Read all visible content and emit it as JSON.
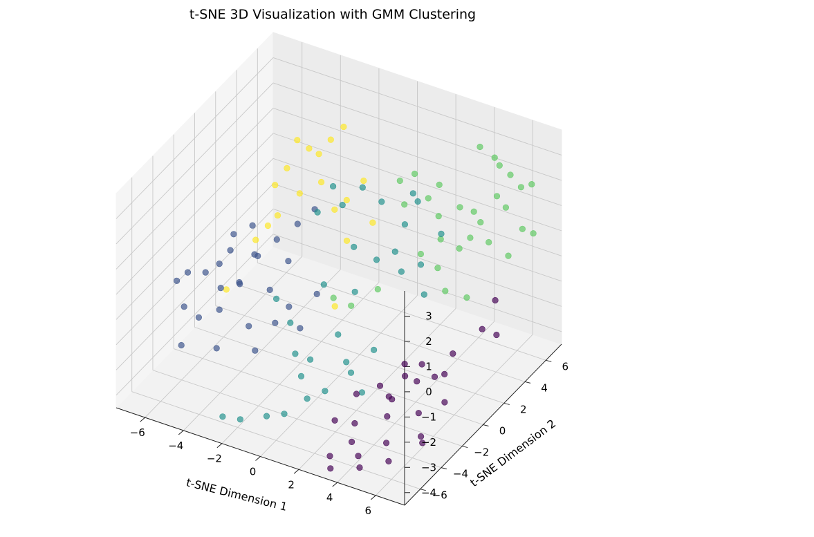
{
  "chart_data": {
    "type": "scatter",
    "projection": "3d",
    "title": "t-SNE 3D Visualization with GMM Clustering",
    "xlabel": "t-SNE Dimension 1",
    "ylabel": "t-SNE Dimension 2",
    "zlabel": "",
    "xlim": [
      -7.5,
      7.5
    ],
    "ylim": [
      -7.5,
      7.5
    ],
    "zlim": [
      -4.5,
      4
    ],
    "xticks": [
      -6,
      -4,
      -2,
      0,
      2,
      4,
      6
    ],
    "yticks": [
      -6,
      -4,
      -2,
      0,
      2,
      4,
      6
    ],
    "zticks": [
      -4,
      -3,
      -2,
      -1,
      0,
      1,
      2,
      3
    ],
    "xtick_labels": [
      "−6",
      "−4",
      "−2",
      "0",
      "2",
      "4",
      "6"
    ],
    "ytick_labels": [
      "−6",
      "−4",
      "−2",
      "0",
      "2",
      "4",
      "6"
    ],
    "ztick_labels": [
      "−4",
      "−3",
      "−2",
      "−1",
      "0",
      "1",
      "2",
      "3"
    ],
    "grid": true,
    "legend": "none",
    "colormap": "viridis",
    "cluster_colors": [
      "#440154",
      "#3b528b",
      "#21918c",
      "#5ec962",
      "#fde725"
    ],
    "series": [
      {
        "cluster": 0,
        "points": [
          [
            4.8,
            -2.5,
            -2.2
          ],
          [
            5.3,
            -1.8,
            -1.9
          ],
          [
            6.2,
            -0.5,
            -1.8
          ],
          [
            4.5,
            -3.2,
            -2.9
          ],
          [
            5.8,
            -1.5,
            -2.4
          ],
          [
            3.2,
            -4.2,
            -2.6
          ],
          [
            4.1,
            -3.6,
            -2.3
          ],
          [
            5.0,
            -2.9,
            -1.5
          ],
          [
            6.8,
            1.2,
            -1.4
          ],
          [
            7.0,
            2.2,
            -2.0
          ],
          [
            6.5,
            3.0,
            -1.1
          ],
          [
            4.6,
            -1.0,
            -3.1
          ],
          [
            3.8,
            -2.2,
            -3.4
          ],
          [
            5.6,
            -0.2,
            -2.9
          ],
          [
            2.4,
            -4.8,
            -3.6
          ],
          [
            3.0,
            -4.0,
            -3.9
          ],
          [
            4.2,
            -3.1,
            -3.7
          ],
          [
            5.4,
            -2.3,
            -3.6
          ],
          [
            6.1,
            -1.1,
            -3.5
          ],
          [
            3.5,
            -5.2,
            -4.0
          ],
          [
            4.7,
            -4.1,
            -4.2
          ],
          [
            5.9,
            -3.0,
            -4.1
          ],
          [
            2.8,
            -6.0,
            -4.4
          ],
          [
            4.0,
            -5.5,
            -4.3
          ],
          [
            5.2,
            -4.8,
            -4.5
          ],
          [
            6.3,
            -3.6,
            -4.0
          ],
          [
            3.1,
            -6.5,
            -4.6
          ],
          [
            4.4,
            -6.1,
            -4.4
          ]
        ]
      },
      {
        "cluster": 1,
        "points": [
          [
            -6.8,
            -3.0,
            -1.2
          ],
          [
            -6.5,
            -2.5,
            -1.0
          ],
          [
            -5.9,
            -1.9,
            -1.1
          ],
          [
            -5.4,
            -1.5,
            -0.8
          ],
          [
            -5.0,
            -2.1,
            -1.4
          ],
          [
            -6.2,
            -3.4,
            -1.9
          ],
          [
            -5.6,
            -3.1,
            -2.3
          ],
          [
            -4.8,
            -2.6,
            -2.0
          ],
          [
            -4.5,
            -1.2,
            -1.5
          ],
          [
            -5.2,
            -0.5,
            0.0
          ],
          [
            -4.6,
            0.2,
            0.2
          ],
          [
            -4.0,
            -0.4,
            -0.6
          ],
          [
            -3.5,
            0.5,
            -0.2
          ],
          [
            -4.2,
            -1.8,
            -1.1
          ],
          [
            -3.1,
            -0.9,
            -1.5
          ],
          [
            -2.8,
            1.2,
            0.3
          ],
          [
            -2.4,
            2.1,
            0.6
          ],
          [
            -3.6,
            -2.0,
            -2.6
          ],
          [
            -2.5,
            -1.5,
            -2.4
          ],
          [
            -1.8,
            -0.4,
            -2.9
          ],
          [
            -5.8,
            -4.4,
            -2.9
          ],
          [
            -4.4,
            -3.6,
            -3.0
          ],
          [
            -3.0,
            -2.5,
            -3.2
          ],
          [
            -2.0,
            -1.1,
            -1.8
          ],
          [
            -1.2,
            0.1,
            -1.6
          ],
          [
            -2.9,
            0.5,
            -0.9
          ],
          [
            -3.9,
            -0.9,
            -0.3
          ],
          [
            -5.1,
            -1.0,
            -0.4
          ]
        ]
      },
      {
        "cluster": 2,
        "points": [
          [
            -2.2,
            -0.6,
            -2.7
          ],
          [
            -1.4,
            -1.6,
            -3.3
          ],
          [
            -0.4,
            -2.0,
            -3.1
          ],
          [
            0.5,
            -1.0,
            -2.3
          ],
          [
            1.5,
            -1.6,
            -3.3
          ],
          [
            2.4,
            -2.2,
            -3.6
          ],
          [
            -3.0,
            -5.6,
            -4.5
          ],
          [
            -2.3,
            -5.2,
            -4.6
          ],
          [
            -1.2,
            -4.7,
            -4.4
          ],
          [
            -0.5,
            -4.3,
            -4.3
          ],
          [
            -0.6,
            -2.5,
            -3.6
          ],
          [
            0.2,
            -3.4,
            -3.9
          ],
          [
            0.8,
            -2.8,
            -3.7
          ],
          [
            1.2,
            -1.5,
            -3.0
          ],
          [
            -1.0,
            0.4,
            -1.3
          ],
          [
            0.6,
            2.5,
            -0.8
          ],
          [
            1.4,
            2.8,
            -0.4
          ],
          [
            -0.2,
            1.8,
            -0.2
          ],
          [
            1.8,
            3.0,
            0.7
          ],
          [
            2.2,
            3.5,
            1.5
          ],
          [
            2.9,
            2.5,
            -0.4
          ],
          [
            0.7,
            2.8,
            1.4
          ],
          [
            -0.4,
            3.0,
            1.6
          ],
          [
            -1.5,
            2.2,
            1.7
          ],
          [
            1.9,
            3.6,
            1.7
          ],
          [
            3.2,
            3.9,
            0.3
          ],
          [
            2.6,
            1.2,
            -0.2
          ],
          [
            -2.6,
            -1.2,
            -1.6
          ],
          [
            -1.6,
            0.9,
            1.2
          ],
          [
            -0.9,
            2.0,
            1.2
          ],
          [
            3.4,
            1.9,
            -1.2
          ],
          [
            0.4,
            0.8,
            -1.4
          ],
          [
            2.2,
            -0.7,
            -2.6
          ]
        ]
      },
      {
        "cluster": 3,
        "points": [
          [
            3.8,
            6.5,
            2.8
          ],
          [
            4.4,
            6.8,
            2.4
          ],
          [
            4.6,
            6.9,
            2.1
          ],
          [
            5.0,
            7.2,
            1.7
          ],
          [
            5.5,
            7.3,
            1.3
          ],
          [
            6.0,
            7.4,
            1.5
          ],
          [
            5.2,
            6.4,
            0.8
          ],
          [
            5.9,
            6.7,
            0.0
          ],
          [
            3.3,
            5.5,
            0.7
          ],
          [
            4.1,
            6.0,
            0.1
          ],
          [
            4.0,
            5.2,
            -0.2
          ],
          [
            4.8,
            5.5,
            -0.3
          ],
          [
            5.6,
            5.9,
            -0.8
          ],
          [
            3.6,
            4.9,
            -0.6
          ],
          [
            2.9,
            4.4,
            -0.2
          ],
          [
            2.2,
            4.5,
            1.2
          ],
          [
            2.5,
            5.0,
            1.6
          ],
          [
            1.6,
            4.3,
            2.1
          ],
          [
            1.0,
            4.0,
            1.8
          ],
          [
            1.5,
            3.5,
            1.2
          ],
          [
            2.9,
            4.2,
            0.8
          ],
          [
            3.4,
            3.2,
            -0.7
          ],
          [
            2.3,
            3.6,
            -0.6
          ],
          [
            3.9,
            3.0,
            -1.4
          ],
          [
            4.8,
            3.4,
            -1.6
          ],
          [
            1.1,
            1.7,
            -1.5
          ],
          [
            0.2,
            0.8,
            -2.0
          ],
          [
            -0.5,
            0.4,
            -1.7
          ],
          [
            4.3,
            5.0,
            1.0
          ],
          [
            4.9,
            6.1,
            1.3
          ],
          [
            6.3,
            7.0,
            -0.2
          ]
        ]
      },
      {
        "cluster": 4,
        "points": [
          [
            -3.8,
            3.0,
            2.6
          ],
          [
            -3.4,
            3.4,
            2.2
          ],
          [
            -2.6,
            4.0,
            2.5
          ],
          [
            -2.2,
            4.5,
            2.9
          ],
          [
            -3.0,
            3.6,
            2.0
          ],
          [
            -3.9,
            2.2,
            1.8
          ],
          [
            -4.3,
            1.8,
            1.2
          ],
          [
            -3.4,
            2.5,
            0.8
          ],
          [
            -2.6,
            3.1,
            1.2
          ],
          [
            -4.0,
            1.5,
            0.2
          ],
          [
            -1.5,
            3.5,
            0.6
          ],
          [
            -1.8,
            2.9,
            0.4
          ],
          [
            -1.0,
            4.2,
            1.2
          ],
          [
            -0.2,
            3.6,
            0.0
          ],
          [
            -1.0,
            2.6,
            -0.5
          ],
          [
            -5.2,
            -1.2,
            -1.9
          ],
          [
            -0.7,
            0.9,
            -2.3
          ],
          [
            -4.6,
            0.5,
            -0.5
          ],
          [
            -3.8,
            0.2,
            0.4
          ]
        ]
      }
    ]
  }
}
